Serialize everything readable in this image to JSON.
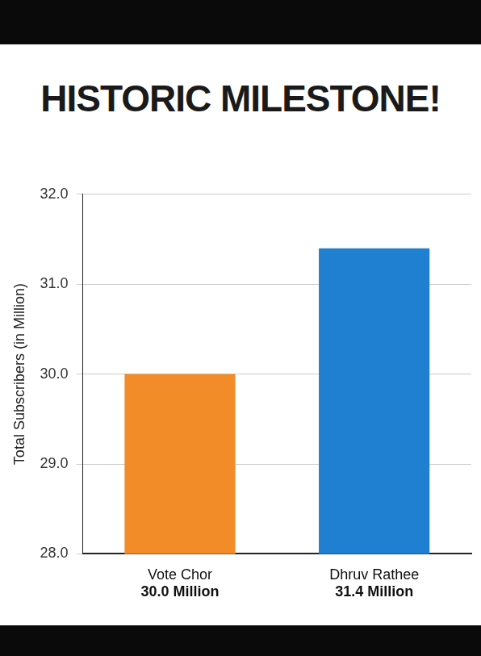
{
  "chart_data": {
    "type": "bar",
    "title": "HISTORIC MILESTONE!",
    "y_label": "Total Subscribers (in Million)",
    "categories": [
      "Vote Chor",
      "Dhruv Rathee"
    ],
    "values": [
      30.0,
      31.4
    ],
    "value_labels": [
      "30.0 Million",
      "31.4 Million"
    ],
    "colors": [
      "#f28c28",
      "#1f7fd1"
    ],
    "ylim": [
      28,
      32
    ],
    "yticks": [
      {
        "value": 28,
        "label": "28.0"
      },
      {
        "value": 29,
        "label": "29.0"
      },
      {
        "value": 30,
        "label": "30.0"
      },
      {
        "value": 31,
        "label": "31.0"
      },
      {
        "value": 32,
        "label": "32.0"
      }
    ],
    "grid": true,
    "data_labels": true
  }
}
